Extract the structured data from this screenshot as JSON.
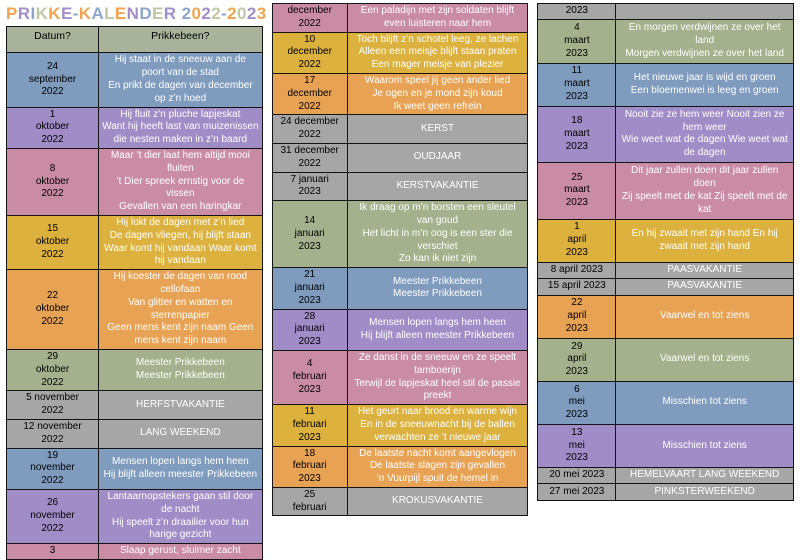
{
  "title": {
    "text": "PRIKKE-KALENDER 2022-2023",
    "letters": [
      [
        "P",
        "orange"
      ],
      [
        "R",
        "purple"
      ],
      [
        "I",
        "blue"
      ],
      [
        "K",
        "green"
      ],
      [
        "K",
        "orange"
      ],
      [
        "E",
        "purple"
      ],
      [
        "-",
        "blue"
      ],
      [
        "K",
        "orange"
      ],
      [
        "A",
        "blue"
      ],
      [
        "L",
        "green"
      ],
      [
        "E",
        "orange"
      ],
      [
        "N",
        "purple"
      ],
      [
        "D",
        "blue"
      ],
      [
        "E",
        "green"
      ],
      [
        "R",
        "purple"
      ],
      [
        " ",
        ""
      ],
      [
        "2",
        "blue"
      ],
      [
        "0",
        "orange"
      ],
      [
        "2",
        "purple"
      ],
      [
        "2",
        "green"
      ],
      [
        "-",
        "blue"
      ],
      [
        "2",
        "orange"
      ],
      [
        "0",
        "green"
      ],
      [
        "2",
        "purple"
      ],
      [
        "3",
        "orange"
      ]
    ]
  },
  "colors": {
    "row": {
      "blue": "#7F9BBE",
      "purple": "#A08CC6",
      "pink": "#C98CA4",
      "gold": "#DCB13E",
      "orange": "#E8A254",
      "green": "#A5B08C",
      "gray": "#A6A6A6",
      "header": "#A9B29B"
    },
    "title_palette": {
      "orange": "#EFA44F",
      "purple": "#A28FC9",
      "blue": "#8CA6C8",
      "green": "#BDC9A3"
    },
    "date_text": "#000000",
    "content_text": "#FFFFFF"
  },
  "tables": [
    {
      "name": "left",
      "header": {
        "date_label": "Datum?",
        "content_label": "Prikkebeen?"
      },
      "rows": [
        {
          "date": "24\nseptember\n2022",
          "color": "blue",
          "text": "Hij staat in de sneeuw aan de poort van de stad\nEn prikt de dagen van december op z’n hoed"
        },
        {
          "date": "1\noktober\n2022",
          "color": "purple",
          "text": "Hij fluit z’n pluche lapjeskat\nWant hij heeft last van muizenissen die nesten maken in z’n baard"
        },
        {
          "date": "8\noktober\n2022",
          "color": "pink",
          "text": "Maar ’t dier laat hem altijd mooi fluiten\n’t Dier spreek ernstig voor de vissen\nGevallen van een haringkar"
        },
        {
          "date": "15\noktober\n2022",
          "color": "gold",
          "text": "Hij lokt de dagen met z’n lied\nDe dagen vliegen, hij blijft staan\nWaar komt hij vandaan Waar komt hij vandaan"
        },
        {
          "date": "22\noktober\n2022",
          "color": "orange",
          "text": "Hij koester de dagen van rood cellofaan\nVan glitter en watten en sterrenpapier\nGeen mens kent zijn naam Geen mens kent zijn naam"
        },
        {
          "date": "29\noktober\n2022",
          "color": "green",
          "text": "Meester Prikkebeen\nMeester Prikkebeen"
        },
        {
          "date": "5 november\n2022",
          "color": "gray",
          "text": "HERFSTVAKANTIE"
        },
        {
          "date": "12 november\n2022",
          "color": "gray",
          "text": "LANG WEEKEND"
        },
        {
          "date": "19\nnovember\n2022",
          "color": "blue",
          "text": "Mensen lopen langs hem heen\nHij blijft alleen meester Prikkebeen"
        },
        {
          "date": "26\nnovember\n2022",
          "color": "purple",
          "text": "Lantaarnopstekers gaan stil door de nacht\nHij speelt z’n draailier voor hun harige gezicht"
        },
        {
          "date": "3",
          "color": "pink",
          "text": "Slaap gerust, sluimer zacht"
        }
      ]
    },
    {
      "name": "middle",
      "rows": [
        {
          "date": "december\n2022",
          "color": "pink",
          "text": "Een paladijn met zijn soldaten blijft even luisteren naar hem"
        },
        {
          "date": "10\ndecember\n2022",
          "color": "gold",
          "text": "Toch blijft z’n schotel leeg, ze lachen\nAlleen een meisje blijft staan praten\nEen mager meisje van plezier"
        },
        {
          "date": "17\ndecember\n2022",
          "color": "orange",
          "text": "Waarom speel jij geen ander lied\nJe ogen en je mond zijn koud\nIk weet geen refrein"
        },
        {
          "date": "24 december\n2022",
          "color": "gray",
          "text": "KERST"
        },
        {
          "date": "31 december\n2022",
          "color": "gray",
          "text": "OUDJAAR"
        },
        {
          "date": "7 januari\n2023",
          "color": "gray",
          "text": "KERSTVAKANTIE"
        },
        {
          "date": "14\njanuari\n2023",
          "color": "green",
          "text": "Ik draag op m’n borsten een sleutel van goud\nHet licht in m’n oog is een ster die verschiet\nZo kan ik niet zijn"
        },
        {
          "date": "21\njanuari\n2023",
          "color": "blue",
          "text": "Meester Prikkebeen\nMeester Prikkebeen"
        },
        {
          "date": "28\njanuari\n2023",
          "color": "purple",
          "text": "Mensen lopen langs hem heen\nHij blijft alleen meester Prikkebeen"
        },
        {
          "date": "4\nfebruari\n2023",
          "color": "pink",
          "text": "Ze danst in de sneeuw en ze speelt tamboerijn\nTerwijl de lapjeskat heel stil de passie preekt"
        },
        {
          "date": "11\nfebruari\n2023",
          "color": "gold",
          "text": "Het geurt naar brood en warme wijn\nEn in de sneeuwnacht bij de ballen verwachten ze ’t nieuwe jaar"
        },
        {
          "date": "18\nfebruari\n2023",
          "color": "orange",
          "text": "De laatste nacht komt aangevlogen\nDe laatste slagen zijn gevallen\n’n Vuurpijl spuit de hemel in"
        },
        {
          "date": "25\nfebruari",
          "color": "gray",
          "text": "KROKUSVAKANTIE"
        }
      ]
    },
    {
      "name": "right",
      "rows": [
        {
          "date": "2023",
          "color": "gray",
          "text": ""
        },
        {
          "date": "4\nmaart\n2023",
          "color": "green",
          "text": "En morgen verdwijnen ze over het land\nMorgen verdwijnen ze over het land"
        },
        {
          "date": "11\nmaart\n2023",
          "color": "blue",
          "text": "Het nieuwe jaar is wijd en groen\nEen bloemenwei is leeg en groen"
        },
        {
          "date": "18\nmaart\n2023",
          "color": "purple",
          "text": "Nooit zie ze hem weer Nooit zien ze hem weer\nWie weet wat de dagen Wie weet wat de dagen"
        },
        {
          "date": "25\nmaart\n2023",
          "color": "pink",
          "text": "Dit jaar zullen doen dit jaar zullen doen\nZij speelt met de kat Zij speelt met de kat"
        },
        {
          "date": "1\napril\n2023",
          "color": "gold",
          "text": "En hij zwaait met zijn hand En hij zwaait met zijn hand"
        },
        {
          "date": "8 april 2023",
          "color": "gray",
          "text": "PAASVAKANTIE"
        },
        {
          "date": "15 april 2023",
          "color": "gray",
          "text": "PAASVAKANTIE"
        },
        {
          "date": "22\napril\n2023",
          "color": "orange",
          "text": "Vaarwel en tot ziens"
        },
        {
          "date": "29\napril\n2023",
          "color": "green",
          "text": "Vaarwel en tot ziens"
        },
        {
          "date": "6\nmei\n2023",
          "color": "blue",
          "text": "Misschien tot ziens"
        },
        {
          "date": "13\nmei\n2023",
          "color": "purple",
          "text": "Misschien tot ziens"
        },
        {
          "date": "20 mei 2023",
          "color": "gray",
          "text": "HEMELVAART LANG WEEKEND"
        },
        {
          "date": "27 mei 2023",
          "color": "gray",
          "text": "PINKSTERWEEKEND"
        }
      ]
    }
  ]
}
